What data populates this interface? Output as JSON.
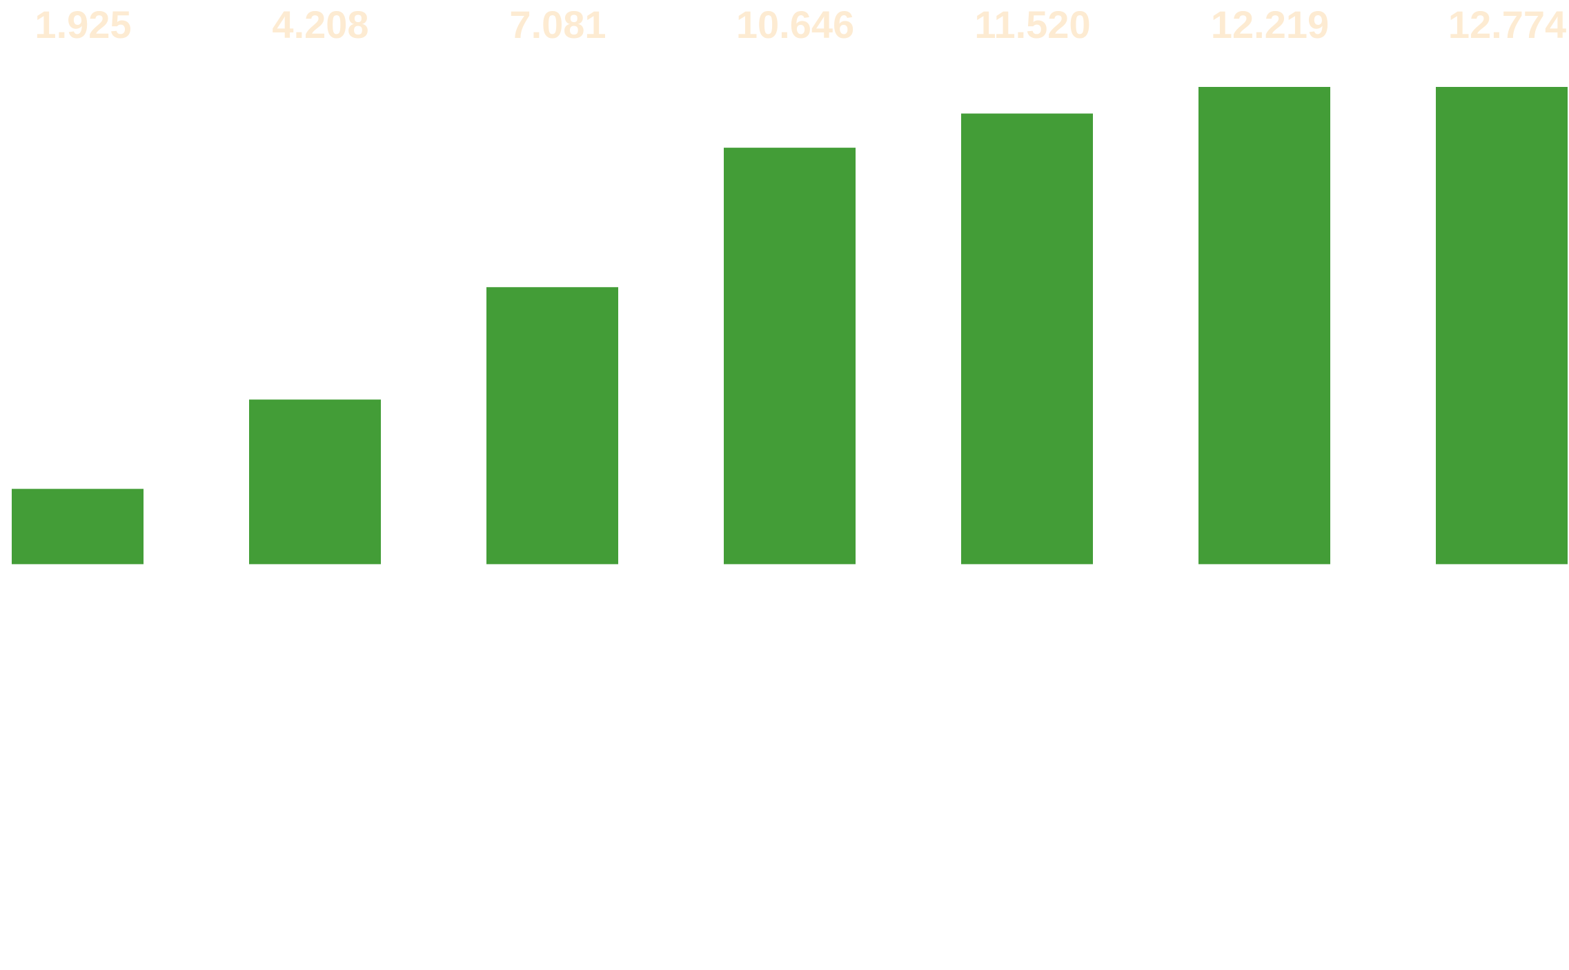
{
  "chart_data": {
    "type": "bar",
    "values": [
      1.925,
      4.208,
      7.081,
      10.646,
      11.52,
      12.219,
      12.774
    ],
    "value_labels": [
      "1.925",
      "4.208",
      "7.081",
      "10.646",
      "11.520",
      "12.219",
      "12.774"
    ],
    "color": "#439d37",
    "ylim": [
      -8.47,
      12.2
    ]
  }
}
